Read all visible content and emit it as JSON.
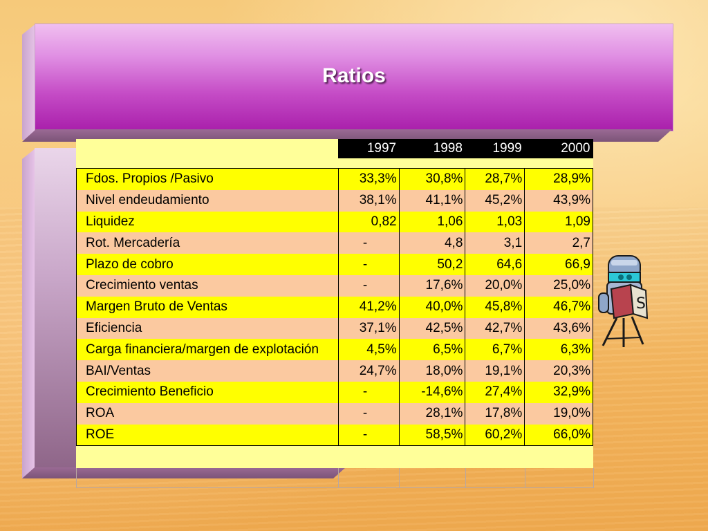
{
  "slide": {
    "title": "Ratios"
  },
  "table": {
    "columns": [
      "1997",
      "1998",
      "1999",
      "2000"
    ],
    "rows": [
      {
        "label": "Fdos. Propios /Pasivo",
        "values": [
          "33,3%",
          "30,8%",
          "28,7%",
          "28,9%"
        ]
      },
      {
        "label": "Nivel endeudamiento",
        "values": [
          "38,1%",
          "41,1%",
          "45,2%",
          "43,9%"
        ]
      },
      {
        "label": "Liquidez",
        "values": [
          "0,82",
          "1,06",
          "1,03",
          "1,09"
        ]
      },
      {
        "label": "Rot. Mercadería",
        "values": [
          "-",
          "4,8",
          "3,1",
          "2,7"
        ]
      },
      {
        "label": "Plazo de cobro",
        "values": [
          "-",
          "50,2",
          "64,6",
          "66,9"
        ]
      },
      {
        "label": "Crecimiento ventas",
        "values": [
          "-",
          "17,6%",
          "20,0%",
          "25,0%"
        ]
      },
      {
        "label": "Margen Bruto de Ventas",
        "values": [
          "41,2%",
          "40,0%",
          "45,8%",
          "46,7%"
        ]
      },
      {
        "label": "Eficiencia",
        "values": [
          "37,1%",
          "42,5%",
          "42,7%",
          "43,6%"
        ]
      },
      {
        "label": "Carga financiera/margen de explotación",
        "values": [
          "4,5%",
          "6,5%",
          "6,7%",
          "6,3%"
        ]
      },
      {
        "label": "BAI/Ventas",
        "values": [
          "24,7%",
          "18,0%",
          "19,1%",
          "20,3%"
        ]
      },
      {
        "label": "Crecimiento Beneficio",
        "values": [
          "-",
          "-14,6%",
          "27,4%",
          "32,9%"
        ]
      },
      {
        "label": "ROA",
        "values": [
          "-",
          "28,1%",
          "17,8%",
          "19,0%"
        ]
      },
      {
        "label": "ROE",
        "values": [
          "-",
          "58,5%",
          "60,2%",
          "66,0%"
        ]
      }
    ]
  },
  "colors": {
    "row_yellow": "#ffff00",
    "row_peach": "#fbc9a0",
    "banner": "#c54cc6"
  },
  "decorations": {
    "mascot_icon": "reading-robot-clipart-icon"
  }
}
